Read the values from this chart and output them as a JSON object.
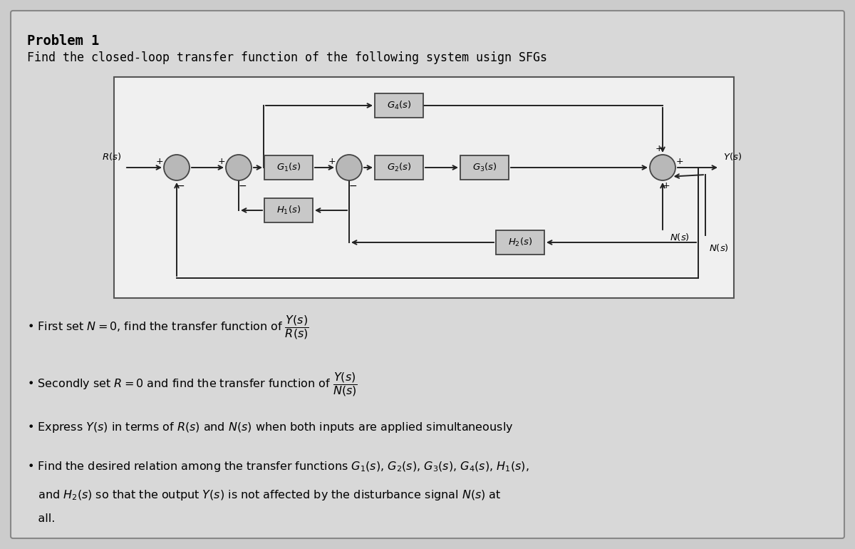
{
  "title": "Problem 1",
  "subtitle": "Find the closed-loop transfer function of the following system usign SFGs",
  "bg_outer": "#cccccc",
  "bg_inner": "#d8d8d8",
  "bg_diagram": "#f0f0f0",
  "diagram_border_color": "#555555",
  "summing_junction_color": "#b8b8b8",
  "block_fill_color": "#c8c8c8",
  "block_edge_color": "#444444",
  "line_color": "#222222",
  "text_color": "#000000",
  "arrow_color": "#222222"
}
